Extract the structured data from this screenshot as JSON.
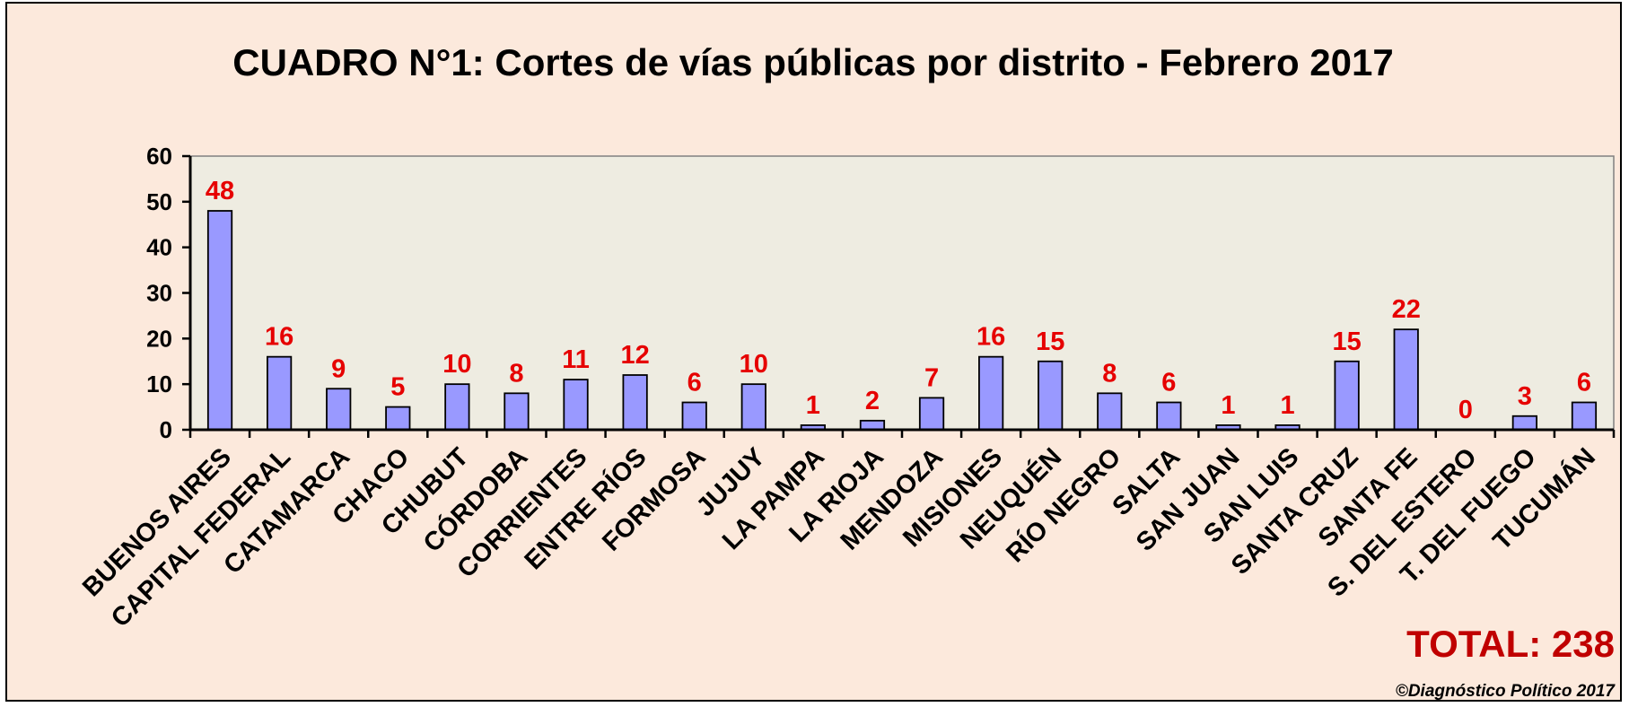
{
  "chart_data": {
    "type": "bar",
    "title": "CUADRO N°1: Cortes de vías públicas por distrito - Febrero 2017",
    "xlabel": "",
    "ylabel": "",
    "ylim": [
      0,
      60
    ],
    "yticks": [
      0,
      10,
      20,
      30,
      40,
      50,
      60
    ],
    "grid": false,
    "categories": [
      "BUENOS AIRES",
      "CAPITAL FEDERAL",
      "CATAMARCA",
      "CHACO",
      "CHUBUT",
      "CÓRDOBA",
      "CORRIENTES",
      "ENTRE RÍOS",
      "FORMOSA",
      "JUJUY",
      "LA PAMPA",
      "LA RIOJA",
      "MENDOZA",
      "MISIONES",
      "NEUQUÉN",
      "RÍO NEGRO",
      "SALTA",
      "SAN JUAN",
      "SAN LUIS",
      "SANTA CRUZ",
      "SANTA FE",
      "S. DEL ESTERO",
      "T. DEL FUEGO",
      "TUCUMÁN"
    ],
    "values": [
      48,
      16,
      9,
      5,
      10,
      8,
      11,
      12,
      6,
      10,
      1,
      2,
      7,
      16,
      15,
      8,
      6,
      1,
      1,
      15,
      22,
      0,
      3,
      6
    ],
    "value_labels": [
      "48",
      "16",
      "9",
      "5",
      "10",
      "8",
      "11",
      "12",
      "6",
      "10",
      "1",
      "2",
      "7",
      "16",
      "15",
      "8",
      "6",
      "1",
      "1",
      "15",
      "22",
      "0",
      "3",
      "6"
    ],
    "total_label": "TOTAL: 238",
    "footer": "©Diagnóstico Político 2017",
    "colors": {
      "bar_fill": "#9999ff",
      "bar_stroke": "#000000",
      "plot_bg": "#eeece1",
      "page_bg": "#fce9dc",
      "value_label": "#e60000",
      "total": "#c00000"
    }
  }
}
